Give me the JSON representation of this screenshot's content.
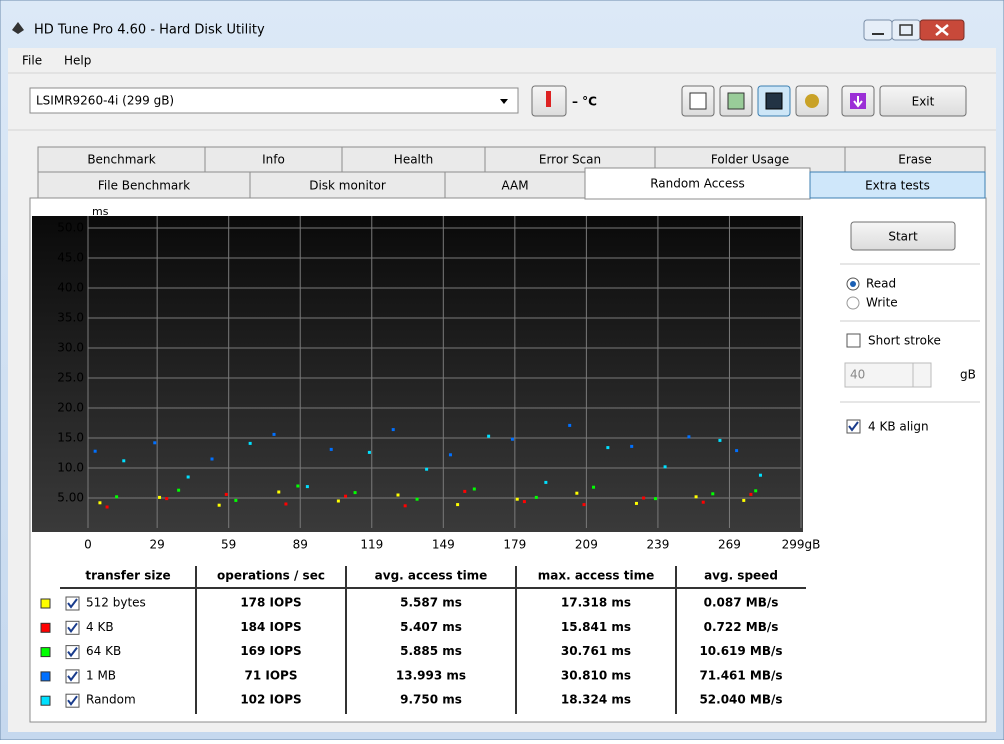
{
  "window": {
    "title": "HD Tune Pro 4.60 - Hard Disk Utility"
  },
  "menu": [
    "File",
    "Help"
  ],
  "toolbar": {
    "drive": "LSIMR9260-4i (299 gB)",
    "temperature": "– °C",
    "exit": "Exit"
  },
  "tabs": {
    "row1": [
      "Benchmark",
      "Info",
      "Health",
      "Error Scan",
      "Folder Usage",
      "Erase"
    ],
    "row2": [
      "File Benchmark",
      "Disk monitor",
      "AAM",
      "Random Access",
      "Extra tests"
    ]
  },
  "options": {
    "start": "Start",
    "read": "Read",
    "write": "Write",
    "short_stroke": "Short stroke",
    "stroke_size": "40",
    "stroke_unit": "gB",
    "align": "4 KB align"
  },
  "chart_data": {
    "type": "scatter",
    "y_label": "ms",
    "xlim": [
      0,
      299
    ],
    "ylim": [
      0,
      50
    ],
    "xticks": [
      0,
      29,
      59,
      89,
      119,
      149,
      179,
      209,
      239,
      269,
      {
        "value": 299,
        "label": "299gB"
      }
    ],
    "yticks": [
      {
        "value": 5,
        "label": "5.00"
      },
      {
        "value": 10,
        "label": "10.0"
      },
      {
        "value": 15,
        "label": "15.0"
      },
      {
        "value": 20,
        "label": "20.0"
      },
      {
        "value": 25,
        "label": "25.0"
      },
      {
        "value": 30,
        "label": "30.0"
      },
      {
        "value": 35,
        "label": "35.0"
      },
      {
        "value": 40,
        "label": "40.0"
      },
      {
        "value": 45,
        "label": "45.0"
      },
      {
        "value": 50,
        "label": "50.0"
      }
    ],
    "grid": true,
    "series": [
      {
        "name": "512 bytes",
        "color": "#ffff00",
        "x": [
          5,
          30,
          55,
          80,
          105,
          130,
          155,
          180,
          205,
          230,
          255,
          275
        ],
        "values": [
          4.2,
          5.1,
          3.8,
          6.0,
          4.5,
          5.5,
          3.9,
          4.8,
          5.8,
          4.1,
          5.2,
          4.6
        ]
      },
      {
        "name": "4 KB",
        "color": "#ff0000",
        "x": [
          8,
          33,
          58,
          83,
          108,
          133,
          158,
          183,
          208,
          233,
          258,
          278
        ],
        "values": [
          3.5,
          4.9,
          5.6,
          4.0,
          5.3,
          3.7,
          6.1,
          4.4,
          3.9,
          5.0,
          4.3,
          5.6
        ]
      },
      {
        "name": "64 KB",
        "color": "#00ff00",
        "x": [
          12,
          38,
          62,
          88,
          112,
          138,
          162,
          188,
          212,
          238,
          262,
          280
        ],
        "values": [
          5.2,
          6.3,
          4.6,
          7.0,
          5.9,
          4.8,
          6.5,
          5.1,
          6.8,
          4.9,
          5.7,
          6.2
        ]
      },
      {
        "name": "1 MB",
        "color": "#0070ff",
        "x": [
          3,
          28,
          52,
          78,
          102,
          128,
          152,
          178,
          202,
          228,
          252,
          272
        ],
        "values": [
          12.8,
          14.2,
          11.5,
          15.6,
          13.1,
          16.4,
          12.2,
          14.8,
          17.1,
          13.6,
          15.2,
          12.9
        ]
      },
      {
        "name": "Random",
        "color": "#00e0ff",
        "x": [
          15,
          42,
          68,
          92,
          118,
          142,
          168,
          192,
          218,
          242,
          265,
          282
        ],
        "values": [
          11.2,
          8.5,
          14.1,
          6.9,
          12.6,
          9.8,
          15.3,
          7.6,
          13.4,
          10.2,
          14.6,
          8.8
        ]
      }
    ]
  },
  "table": {
    "headers": [
      "transfer size",
      "operations / sec",
      "avg. access time",
      "max. access time",
      "avg. speed"
    ],
    "rows": [
      [
        "178 IOPS",
        "5.587 ms",
        "17.318 ms",
        "0.087 MB/s"
      ],
      [
        "184 IOPS",
        "5.407 ms",
        "15.841 ms",
        "0.722 MB/s"
      ],
      [
        "169 IOPS",
        "5.885 ms",
        "30.761 ms",
        "10.619 MB/s"
      ],
      [
        "71 IOPS",
        "13.993 ms",
        "30.810 ms",
        "71.461 MB/s"
      ],
      [
        "102 IOPS",
        "9.750 ms",
        "18.324 ms",
        "52.040 MB/s"
      ]
    ]
  }
}
